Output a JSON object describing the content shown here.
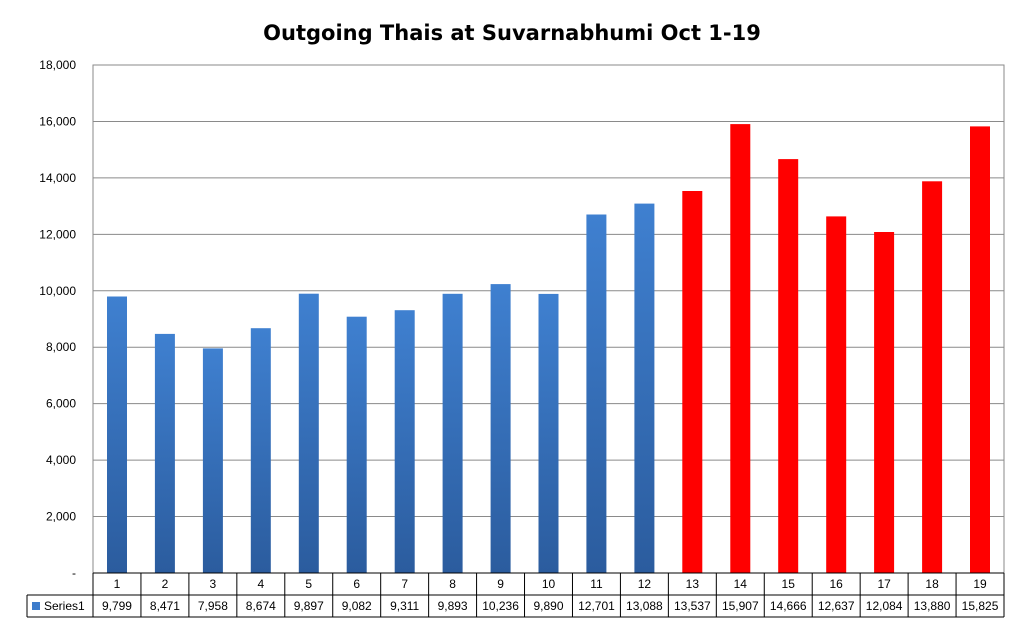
{
  "chart_data": {
    "type": "bar",
    "title": "Outgoing Thais at Suvarnabhumi Oct 1-19",
    "categories": [
      "1",
      "2",
      "3",
      "4",
      "5",
      "6",
      "7",
      "8",
      "9",
      "10",
      "11",
      "12",
      "13",
      "14",
      "15",
      "16",
      "17",
      "18",
      "19"
    ],
    "series": [
      {
        "name": "Series1",
        "values": [
          9799,
          8471,
          7958,
          8674,
          9897,
          9082,
          9311,
          9893,
          10236,
          9890,
          12701,
          13088,
          13537,
          15907,
          14666,
          12637,
          12084,
          13880,
          15825
        ],
        "value_labels": [
          "9,799",
          "8,471",
          "7,958",
          "8,674",
          "9,897",
          "9,082",
          "9,311",
          "9,893",
          "10,236",
          "9,890",
          "12,701",
          "13,088",
          "13,537",
          "15,907",
          "14,666",
          "12,637",
          "12,084",
          "13,880",
          "15,825"
        ]
      }
    ],
    "ylim": [
      0,
      18000
    ],
    "yticks": [
      0,
      2000,
      4000,
      6000,
      8000,
      10000,
      12000,
      14000,
      16000,
      18000
    ],
    "ytick_labels": [
      "-",
      "2,000",
      "4,000",
      "6,000",
      "8,000",
      "10,000",
      "12,000",
      "14,000",
      "16,000",
      "18,000"
    ],
    "grid": true,
    "legend": "data-table-left",
    "colors": {
      "blue": "#3d7ccb",
      "blue_dark": "#2a5ea3",
      "red": "#ff0000"
    },
    "red_from_index": 12
  }
}
